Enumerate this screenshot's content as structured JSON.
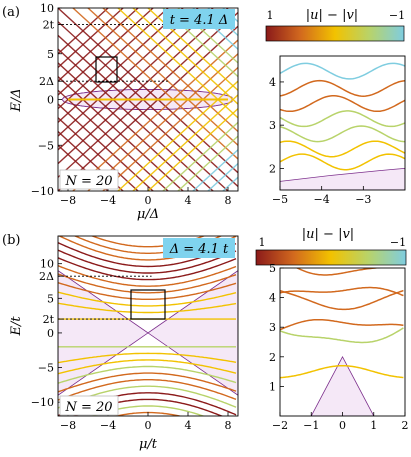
{
  "figure": {
    "panel_a_label": "(a)",
    "panel_b_label": "(b)",
    "panel_a_badge": "t = 4.1 Δ",
    "panel_b_badge": "Δ = 4.1 t",
    "panel_a_n": "N = 20",
    "panel_b_n": "N = 20",
    "colorbar_label": "|u| − |v|",
    "colorbar_min": "1",
    "colorbar_max": "−1",
    "colors": {
      "bulk_fill": "#f5e8f7",
      "bulk_edge": "#7b2d8b",
      "badge": "#7fd3ee",
      "colormap": [
        "#8b1a1a",
        "#d2691e",
        "#f2c200",
        "#b8d36a",
        "#7fcde0"
      ]
    }
  },
  "chart_data": [
    {
      "id": "a-main",
      "type": "line",
      "xlabel": "μ/Δ",
      "ylabel": "E/Δ",
      "xlim": [
        -9,
        9
      ],
      "ylim": [
        -10,
        10
      ],
      "xticks": [
        -8,
        -4,
        0,
        4,
        8
      ],
      "xtick_labels": [
        "−8",
        "−4",
        "0",
        "4",
        "8"
      ],
      "yticks": [
        -10,
        -5,
        0,
        2,
        5,
        8.2,
        10
      ],
      "ytick_labels": [
        "−10",
        "−5",
        "0",
        "2Δ",
        "5",
        "2t",
        "10"
      ],
      "reference_lines": [
        2,
        8.2
      ],
      "badge": "t = 4.1 Δ",
      "n_label": "N = 20",
      "inset_box": {
        "x": [
          -4.8,
          -2.3
        ],
        "y": [
          1.7,
          4.6
        ]
      }
    },
    {
      "id": "a-zoom",
      "type": "line",
      "xlim": [
        -5,
        -2
      ],
      "ylim": [
        1.5,
        4.6
      ],
      "xticks": [
        -5,
        -4,
        -3
      ],
      "xtick_labels": [
        "−5",
        "−4",
        "−3"
      ],
      "yticks": [
        2,
        3,
        4
      ],
      "ytick_labels": [
        "2",
        "3",
        "4"
      ]
    },
    {
      "id": "b-main",
      "type": "line",
      "xlabel": "μ/t",
      "ylabel": "E/t",
      "xlim": [
        -9,
        9
      ],
      "ylim": [
        -12,
        14
      ],
      "xticks": [
        -8,
        -4,
        0,
        4,
        8
      ],
      "xtick_labels": [
        "−8",
        "−4",
        "0",
        "4",
        "8"
      ],
      "yticks": [
        -10,
        -5,
        0,
        2,
        5,
        8.2,
        10
      ],
      "ytick_labels": [
        "−10",
        "−5",
        "0",
        "2t",
        "5",
        "2Δ",
        "10"
      ],
      "reference_lines": [
        2,
        8.2
      ],
      "badge": "Δ = 4.1 t",
      "n_label": "N = 20",
      "inset_box": {
        "x": [
          -2,
          2
        ],
        "y": [
          1.2,
          5.1
        ]
      }
    },
    {
      "id": "b-zoom",
      "type": "line",
      "xlim": [
        -2,
        2
      ],
      "ylim": [
        0,
        5
      ],
      "xticks": [
        -2,
        -1,
        0,
        1,
        2
      ],
      "xtick_labels": [
        "−2",
        "−1",
        "0",
        "1",
        "2"
      ],
      "yticks": [
        1,
        2,
        3,
        4,
        5
      ],
      "ytick_labels": [
        "1",
        "2",
        "3",
        "4",
        "5"
      ]
    }
  ]
}
